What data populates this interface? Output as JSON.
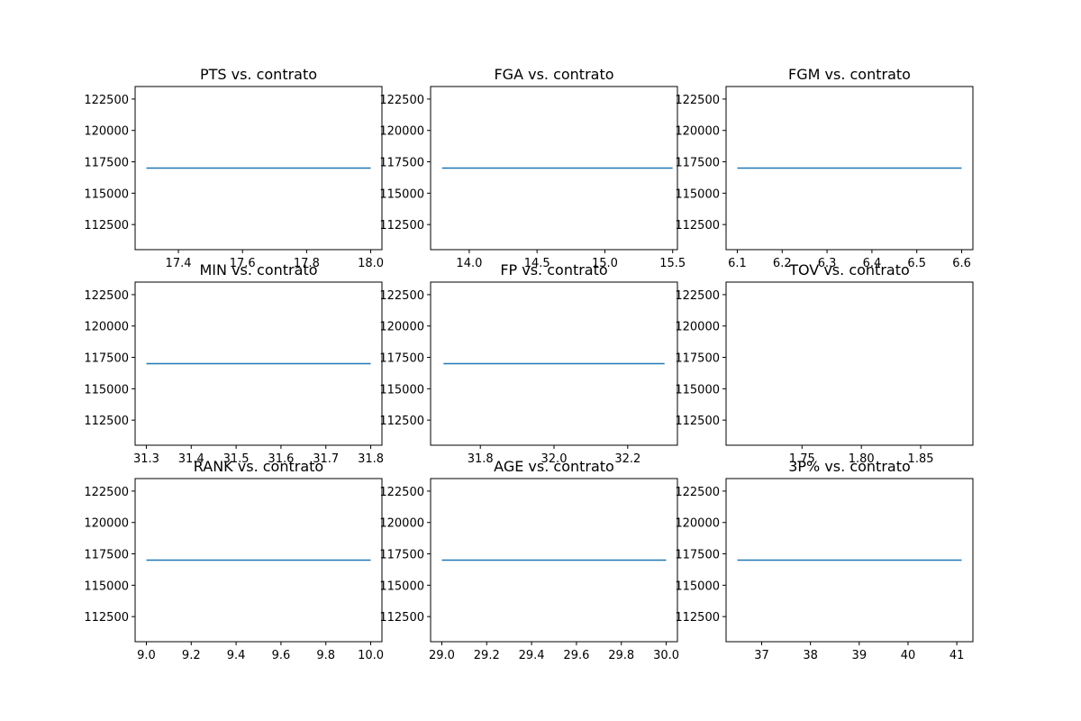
{
  "chart_data": [
    {
      "type": "line",
      "title": "PTS vs. contrato",
      "xlim": [
        17.265,
        18.035
      ],
      "ylim": [
        110500,
        123500
      ],
      "xticks": [
        {
          "v": 17.4,
          "label": "17.4"
        },
        {
          "v": 17.6,
          "label": "17.6"
        },
        {
          "v": 17.8,
          "label": "17.8"
        },
        {
          "v": 18.0,
          "label": "18.0"
        }
      ],
      "yticks": [
        {
          "v": 112500,
          "label": "112500"
        },
        {
          "v": 115000,
          "label": "115000"
        },
        {
          "v": 117500,
          "label": "117500"
        },
        {
          "v": 120000,
          "label": "120000"
        },
        {
          "v": 122500,
          "label": "122500"
        }
      ],
      "series": [
        {
          "x": [
            17.3,
            18.0
          ],
          "y": [
            117000,
            117000
          ]
        }
      ]
    },
    {
      "type": "line",
      "title": "FGA vs. contrato",
      "xlim": [
        13.715,
        15.535
      ],
      "ylim": [
        110500,
        123500
      ],
      "xticks": [
        {
          "v": 14.0,
          "label": "14.0"
        },
        {
          "v": 14.5,
          "label": "14.5"
        },
        {
          "v": 15.0,
          "label": "15.0"
        },
        {
          "v": 15.5,
          "label": "15.5"
        }
      ],
      "yticks": [
        {
          "v": 112500,
          "label": "112500"
        },
        {
          "v": 115000,
          "label": "115000"
        },
        {
          "v": 117500,
          "label": "117500"
        },
        {
          "v": 120000,
          "label": "120000"
        },
        {
          "v": 122500,
          "label": "122500"
        }
      ],
      "series": [
        {
          "x": [
            13.8,
            15.5
          ],
          "y": [
            117000,
            117000
          ]
        }
      ]
    },
    {
      "type": "line",
      "title": "FGM vs. contrato",
      "xlim": [
        6.075,
        6.625
      ],
      "ylim": [
        110500,
        123500
      ],
      "xticks": [
        {
          "v": 6.1,
          "label": "6.1"
        },
        {
          "v": 6.2,
          "label": "6.2"
        },
        {
          "v": 6.3,
          "label": "6.3"
        },
        {
          "v": 6.4,
          "label": "6.4"
        },
        {
          "v": 6.5,
          "label": "6.5"
        },
        {
          "v": 6.6,
          "label": "6.6"
        }
      ],
      "yticks": [
        {
          "v": 112500,
          "label": "112500"
        },
        {
          "v": 115000,
          "label": "115000"
        },
        {
          "v": 117500,
          "label": "117500"
        },
        {
          "v": 120000,
          "label": "120000"
        },
        {
          "v": 122500,
          "label": "122500"
        }
      ],
      "series": [
        {
          "x": [
            6.1,
            6.6
          ],
          "y": [
            117000,
            117000
          ]
        }
      ]
    },
    {
      "type": "line",
      "title": "MIN vs. contrato",
      "xlim": [
        31.275,
        31.825
      ],
      "ylim": [
        110500,
        123500
      ],
      "xticks": [
        {
          "v": 31.3,
          "label": "31.3"
        },
        {
          "v": 31.4,
          "label": "31.4"
        },
        {
          "v": 31.5,
          "label": "31.5"
        },
        {
          "v": 31.6,
          "label": "31.6"
        },
        {
          "v": 31.7,
          "label": "31.7"
        },
        {
          "v": 31.8,
          "label": "31.8"
        }
      ],
      "yticks": [
        {
          "v": 112500,
          "label": "112500"
        },
        {
          "v": 115000,
          "label": "115000"
        },
        {
          "v": 117500,
          "label": "117500"
        },
        {
          "v": 120000,
          "label": "120000"
        },
        {
          "v": 122500,
          "label": "122500"
        }
      ],
      "series": [
        {
          "x": [
            31.3,
            31.8
          ],
          "y": [
            117000,
            117000
          ]
        }
      ]
    },
    {
      "type": "line",
      "title": "FP vs. contrato",
      "xlim": [
        31.665,
        32.335
      ],
      "ylim": [
        110500,
        123500
      ],
      "xticks": [
        {
          "v": 31.8,
          "label": "31.8"
        },
        {
          "v": 32.0,
          "label": "32.0"
        },
        {
          "v": 32.2,
          "label": "32.2"
        }
      ],
      "yticks": [
        {
          "v": 112500,
          "label": "112500"
        },
        {
          "v": 115000,
          "label": "115000"
        },
        {
          "v": 117500,
          "label": "117500"
        },
        {
          "v": 120000,
          "label": "120000"
        },
        {
          "v": 122500,
          "label": "122500"
        }
      ],
      "series": [
        {
          "x": [
            31.7,
            32.3
          ],
          "y": [
            117000,
            117000
          ]
        }
      ]
    },
    {
      "type": "line",
      "title": "TOV vs. contrato",
      "xlim": [
        1.686,
        1.894
      ],
      "ylim": [
        110500,
        123500
      ],
      "xticks": [
        {
          "v": 1.75,
          "label": "1.75"
        },
        {
          "v": 1.8,
          "label": "1.80"
        },
        {
          "v": 1.85,
          "label": "1.85"
        }
      ],
      "yticks": [
        {
          "v": 112500,
          "label": "112500"
        },
        {
          "v": 115000,
          "label": "115000"
        },
        {
          "v": 117500,
          "label": "117500"
        },
        {
          "v": 120000,
          "label": "120000"
        },
        {
          "v": 122500,
          "label": "122500"
        }
      ],
      "series": []
    },
    {
      "type": "line",
      "title": "RANK vs. contrato",
      "xlim": [
        8.95,
        10.05
      ],
      "ylim": [
        110500,
        123500
      ],
      "xticks": [
        {
          "v": 9.0,
          "label": "9.0"
        },
        {
          "v": 9.2,
          "label": "9.2"
        },
        {
          "v": 9.4,
          "label": "9.4"
        },
        {
          "v": 9.6,
          "label": "9.6"
        },
        {
          "v": 9.8,
          "label": "9.8"
        },
        {
          "v": 10.0,
          "label": "10.0"
        }
      ],
      "yticks": [
        {
          "v": 112500,
          "label": "112500"
        },
        {
          "v": 115000,
          "label": "115000"
        },
        {
          "v": 117500,
          "label": "117500"
        },
        {
          "v": 120000,
          "label": "120000"
        },
        {
          "v": 122500,
          "label": "122500"
        }
      ],
      "series": [
        {
          "x": [
            9.0,
            10.0
          ],
          "y": [
            117000,
            117000
          ]
        }
      ]
    },
    {
      "type": "line",
      "title": "AGE vs. contrato",
      "xlim": [
        28.95,
        30.05
      ],
      "ylim": [
        110500,
        123500
      ],
      "xticks": [
        {
          "v": 29.0,
          "label": "29.0"
        },
        {
          "v": 29.2,
          "label": "29.2"
        },
        {
          "v": 29.4,
          "label": "29.4"
        },
        {
          "v": 29.6,
          "label": "29.6"
        },
        {
          "v": 29.8,
          "label": "29.8"
        },
        {
          "v": 30.0,
          "label": "30.0"
        }
      ],
      "yticks": [
        {
          "v": 112500,
          "label": "112500"
        },
        {
          "v": 115000,
          "label": "115000"
        },
        {
          "v": 117500,
          "label": "117500"
        },
        {
          "v": 120000,
          "label": "120000"
        },
        {
          "v": 122500,
          "label": "122500"
        }
      ],
      "series": [
        {
          "x": [
            29.0,
            30.0
          ],
          "y": [
            117000,
            117000
          ]
        }
      ]
    },
    {
      "type": "line",
      "title": "3P% vs. contrato",
      "xlim": [
        36.27,
        41.33
      ],
      "ylim": [
        110500,
        123500
      ],
      "xticks": [
        {
          "v": 37,
          "label": "37"
        },
        {
          "v": 38,
          "label": "38"
        },
        {
          "v": 39,
          "label": "39"
        },
        {
          "v": 40,
          "label": "40"
        },
        {
          "v": 41,
          "label": "41"
        }
      ],
      "yticks": [
        {
          "v": 112500,
          "label": "112500"
        },
        {
          "v": 115000,
          "label": "115000"
        },
        {
          "v": 117500,
          "label": "117500"
        },
        {
          "v": 120000,
          "label": "120000"
        },
        {
          "v": 122500,
          "label": "122500"
        }
      ],
      "series": [
        {
          "x": [
            36.5,
            41.1
          ],
          "y": [
            117000,
            117000
          ]
        }
      ]
    }
  ],
  "colors": {
    "series": "#1f77b4",
    "frame": "#000000",
    "background": "#ffffff"
  }
}
